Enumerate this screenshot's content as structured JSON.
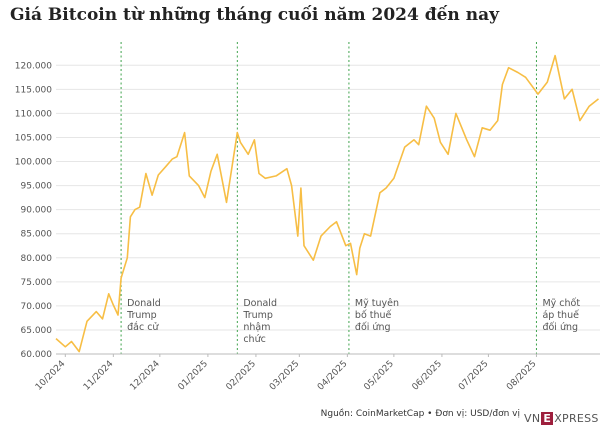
{
  "chart_data": {
    "type": "line",
    "title": "Giá Bitcoin từ những tháng cuối năm 2024 đến nay",
    "ylim": [
      60000,
      124000
    ],
    "yticks": [
      "60.000",
      "65.000",
      "70.000",
      "75.000",
      "80.000",
      "85.000",
      "90.000",
      "95.000",
      "100.000",
      "105.000",
      "110.000",
      "115.000",
      "120.000"
    ],
    "xticks": [
      "10/2024",
      "11/2024",
      "12/2024",
      "01/2025",
      "02/2025",
      "03/2025",
      "04/2025",
      "05/2025",
      "06/2025",
      "07/2025",
      "08/2025"
    ],
    "grid": "horizontal",
    "series": [
      {
        "color": "#f7be45",
        "x": [
          "2024-09-25",
          "2024-10-01",
          "2024-10-05",
          "2024-10-10",
          "2024-10-15",
          "2024-10-21",
          "2024-10-25",
          "2024-10-29",
          "2024-11-01",
          "2024-11-04",
          "2024-11-06",
          "2024-11-10",
          "2024-11-12",
          "2024-11-15",
          "2024-11-18",
          "2024-11-22",
          "2024-11-26",
          "2024-11-30",
          "2024-12-05",
          "2024-12-09",
          "2024-12-12",
          "2024-12-17",
          "2024-12-20",
          "2024-12-26",
          "2024-12-30",
          "2025-01-03",
          "2025-01-07",
          "2025-01-13",
          "2025-01-20",
          "2025-01-22",
          "2025-01-27",
          "2025-01-31",
          "2025-02-03",
          "2025-02-07",
          "2025-02-14",
          "2025-02-21",
          "2025-02-24",
          "2025-02-28",
          "2025-03-02",
          "2025-03-04",
          "2025-03-10",
          "2025-03-15",
          "2025-03-21",
          "2025-03-25",
          "2025-03-31",
          "2025-04-03",
          "2025-04-07",
          "2025-04-09",
          "2025-04-12",
          "2025-04-16",
          "2025-04-22",
          "2025-04-26",
          "2025-05-01",
          "2025-05-08",
          "2025-05-14",
          "2025-05-17",
          "2025-05-22",
          "2025-05-27",
          "2025-05-31",
          "2025-06-05",
          "2025-06-10",
          "2025-06-17",
          "2025-06-22",
          "2025-06-27",
          "2025-07-02",
          "2025-07-07",
          "2025-07-10",
          "2025-07-14",
          "2025-07-20",
          "2025-07-25",
          "2025-08-02",
          "2025-08-08",
          "2025-08-13",
          "2025-08-19",
          "2025-08-24",
          "2025-08-29",
          "2025-09-04",
          "2025-09-10"
        ],
        "y": [
          63200,
          61500,
          62600,
          60500,
          66800,
          68800,
          67300,
          72500,
          70200,
          68100,
          75800,
          80000,
          88500,
          90000,
          90500,
          97500,
          93000,
          97200,
          99000,
          100500,
          101000,
          106000,
          97000,
          95000,
          92500,
          98000,
          101500,
          91500,
          106000,
          104000,
          101500,
          104500,
          97500,
          96500,
          97000,
          98500,
          95000,
          84500,
          94500,
          82500,
          79500,
          84500,
          86500,
          87500,
          82500,
          83000,
          76500,
          82000,
          85000,
          84500,
          93500,
          94500,
          96500,
          103000,
          104500,
          103500,
          111500,
          109000,
          104000,
          101500,
          110000,
          104500,
          101000,
          107000,
          106500,
          108500,
          116000,
          119500,
          118500,
          117500,
          114000,
          116500,
          122000,
          113000,
          115000,
          108500,
          111500,
          113000
        ]
      }
    ],
    "annotations": [
      {
        "date": "2024-11-06",
        "lines": [
          "Donald",
          "Trump",
          "đắc cử"
        ]
      },
      {
        "date": "2025-01-20",
        "lines": [
          "Donald",
          "Trump",
          "nhậm",
          "chức"
        ]
      },
      {
        "date": "2025-04-02",
        "lines": [
          "Mỹ tuyên",
          "bố thuế",
          "đối ứng"
        ]
      },
      {
        "date": "2025-08-01",
        "lines": [
          "Mỹ chốt",
          "áp thuế",
          "đối ứng"
        ]
      }
    ]
  },
  "footer": {
    "source": "Nguồn: CoinMarketCap • Đơn vị: USD/đơn vị"
  },
  "logo": {
    "pre": "VN",
    "mark": "E",
    "post": "XPRESS"
  }
}
